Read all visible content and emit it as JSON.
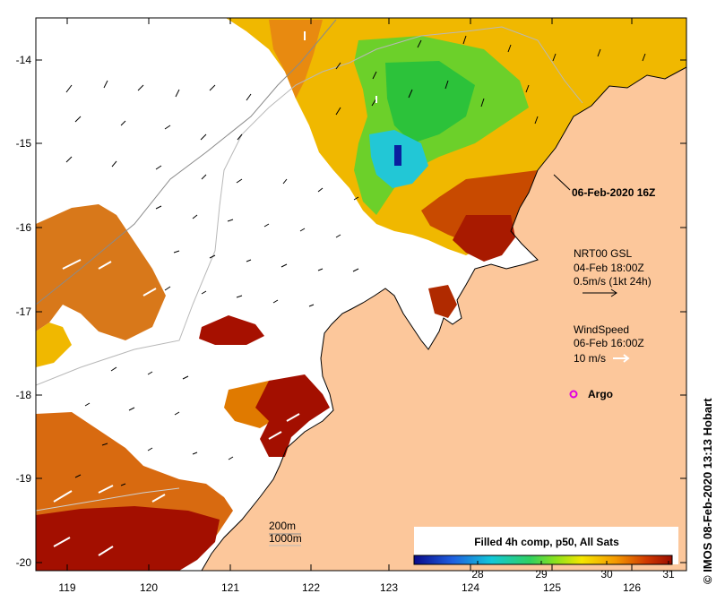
{
  "map": {
    "x_ticks": [
      "119",
      "120",
      "121",
      "122",
      "123",
      "124",
      "125",
      "126"
    ],
    "y_ticks": [
      "-14",
      "-15",
      "-16",
      "-17",
      "-18",
      "-19",
      "-20"
    ],
    "colors": {
      "land": "#fcc79b",
      "no_data": "#ffffff",
      "warm": "#a30f00",
      "orange": "#e07a00",
      "yellow": "#f2c200",
      "green": "#58d118",
      "cyan": "#22c7d6",
      "blue": "#0a1f9e",
      "argo": "#e000e0"
    }
  },
  "annotations": {
    "date_label": "06-Feb-2020 16Z",
    "current_source": "NRT00 GSL",
    "current_time": "04-Feb 18:00Z",
    "current_scale": "0.5m/s (1kt 24h)",
    "wind_title": "WindSpeed",
    "wind_time": "06-Feb 16:00Z",
    "wind_scale": "10 m/s",
    "argo_label": "Argo",
    "depth_200": "200m",
    "depth_1000": "1000m"
  },
  "colorbar": {
    "title": "Filled 4h comp, p50, All Sats",
    "ticks": [
      "28",
      "29",
      "30",
      "31"
    ]
  },
  "credit": "© IMOS 08-Feb-2020 13:13 Hobart"
}
